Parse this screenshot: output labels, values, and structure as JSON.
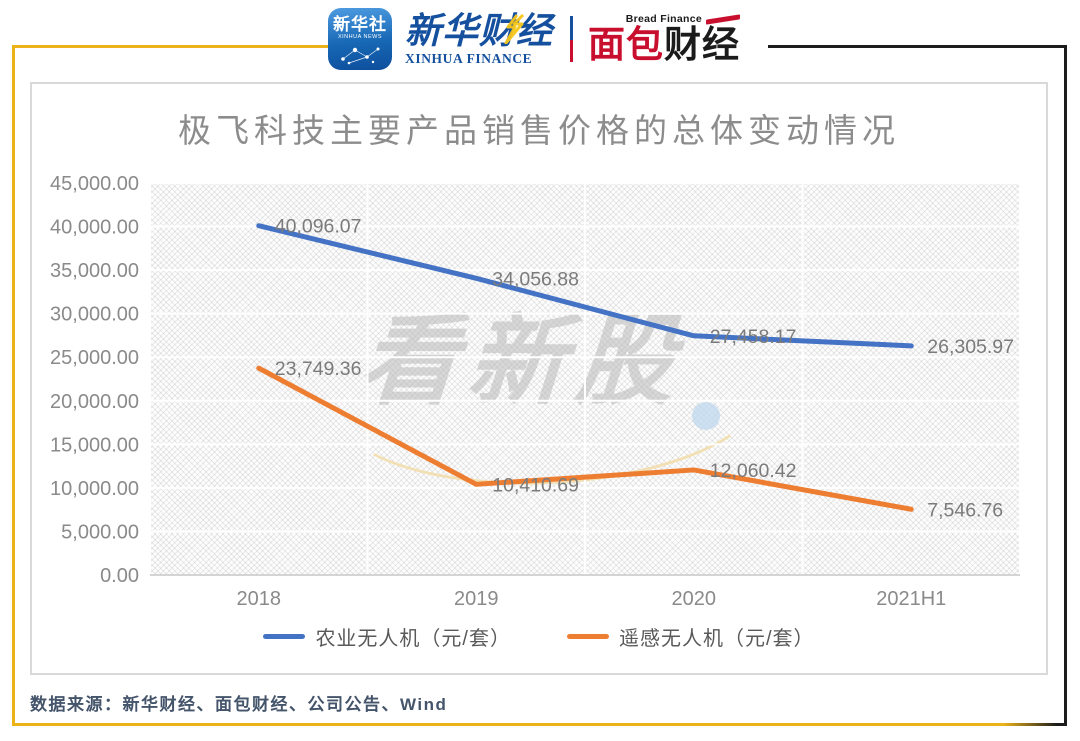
{
  "header": {
    "xinhua_app": {
      "line1": "新华社",
      "line2": "XINHUA NEWS"
    },
    "xinhua_finance": {
      "cn": "新华财经",
      "en": "XINHUA FINANCE"
    },
    "bread_finance": {
      "cn_red": "面包",
      "cn_dark": "财经",
      "en": "Bread Finance"
    }
  },
  "watermark": {
    "text": "看新股"
  },
  "footer": {
    "source": "数据来源：新华财经、面包财经、公司公告、Wind"
  },
  "colors": {
    "border_gold": "#EBB219",
    "border_black": "#1C1C1C",
    "chart_box_border": "#D9D9D9",
    "title_gray": "#8C8C8C",
    "axis_gray": "#8A8A8A",
    "label_gray": "#7B7B7B",
    "legend_text": "#595959",
    "grid_white": "#FFFFFF",
    "axis_line": "#C6C6C6",
    "footer_text": "#44546A",
    "xinhua_blue": "#15509F",
    "bread_red": "#C8102E",
    "bolt_yellow": "#F5C518",
    "watermark_gray": "#B9B9B9",
    "swoosh_cream": "#F2DFAE",
    "dot_blue": "#BDD7EE"
  },
  "chart_data": {
    "type": "line",
    "title": "极飞科技主要产品销售价格的总体变动情况",
    "categories": [
      "2018",
      "2019",
      "2020",
      "2021H1"
    ],
    "series": [
      {
        "name": "农业无人机（元/套）",
        "color": "#4472C4",
        "values": [
          40096.07,
          34056.88,
          27458.17,
          26305.97
        ],
        "labels": [
          "40,096.07",
          "34,056.88",
          "27,458.17",
          "26,305.97"
        ]
      },
      {
        "name": "遥感无人机（元/套）",
        "color": "#ED7D31",
        "values": [
          23749.36,
          10410.69,
          12060.42,
          7546.76
        ],
        "labels": [
          "23,749.36",
          "10,410.69",
          "12,060.42",
          "7,546.76"
        ]
      }
    ],
    "ylim": [
      0,
      45000
    ],
    "ytick_step": 5000,
    "ytick_labels": [
      "0.00",
      "5,000.00",
      "10,000.00",
      "15,000.00",
      "20,000.00",
      "25,000.00",
      "30,000.00",
      "35,000.00",
      "40,000.00",
      "45,000.00"
    ],
    "grid": true,
    "legend_position": "bottom"
  }
}
